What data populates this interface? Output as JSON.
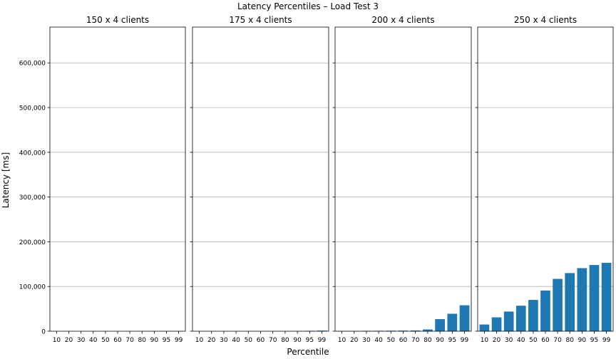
{
  "figure": {
    "title": "Latency Percentiles – Load Test 3",
    "xlabel": "Percentile",
    "ylabel": "Latency [ms]"
  },
  "chart_data": {
    "type": "bar",
    "title": "Latency Percentiles – Load Test 3",
    "xlabel": "Percentile",
    "ylabel": "Latency [ms]",
    "categories": [
      "10",
      "20",
      "30",
      "40",
      "50",
      "60",
      "70",
      "80",
      "90",
      "95",
      "99"
    ],
    "ylim": [
      0,
      680000
    ],
    "yticks": [
      0,
      100000,
      200000,
      300000,
      400000,
      500000,
      600000
    ],
    "ytick_labels": [
      "0",
      "100,000",
      "200,000",
      "300,000",
      "400,000",
      "500,000",
      "600,000"
    ],
    "grid": "y",
    "bar_color": "#1f77b4",
    "shared_y": true,
    "panels": [
      {
        "title": "150 x 4 clients",
        "values": [
          20,
          25,
          30,
          35,
          40,
          50,
          60,
          80,
          120,
          180,
          300
        ]
      },
      {
        "title": "175 x 4 clients",
        "values": [
          30,
          40,
          50,
          60,
          70,
          90,
          110,
          150,
          250,
          900,
          1400
        ]
      },
      {
        "title": "200 x 4 clients",
        "values": [
          500,
          700,
          900,
          1000,
          1200,
          1400,
          1700,
          4000,
          27000,
          39000,
          58000
        ]
      },
      {
        "title": "250 x 4 clients",
        "values": [
          15000,
          31000,
          44000,
          57000,
          70000,
          91000,
          117000,
          130000,
          141000,
          148000,
          153000
        ]
      }
    ]
  }
}
